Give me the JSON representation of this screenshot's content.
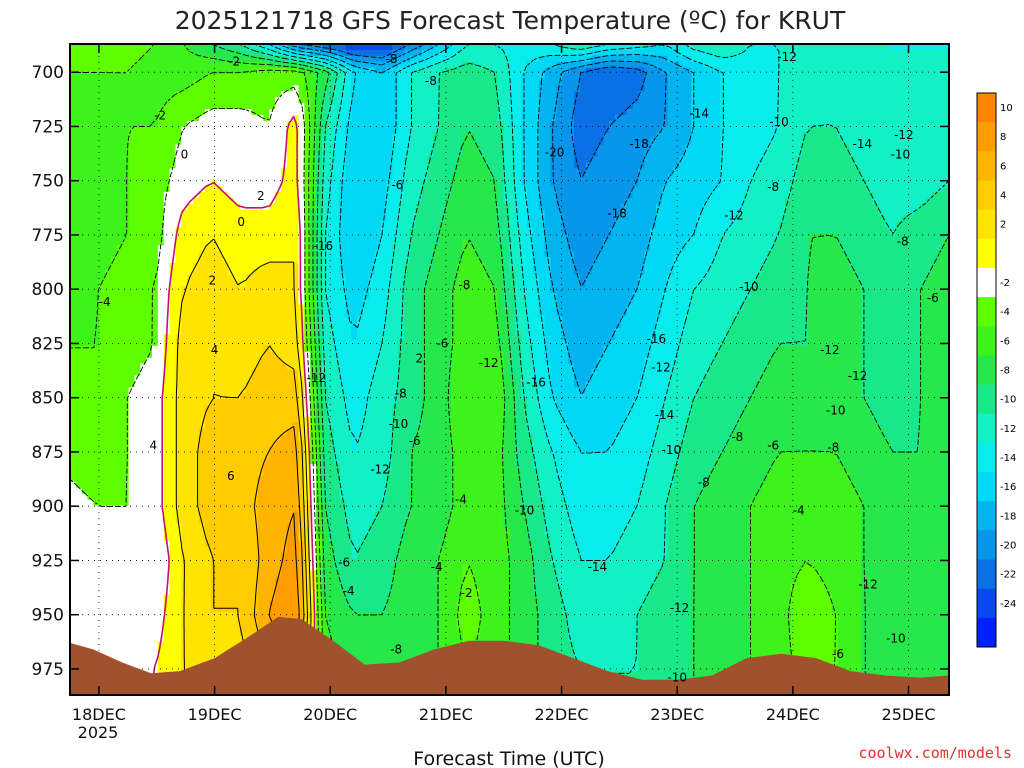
{
  "chart_data": {
    "type": "heatmap",
    "title": "2025121718 GFS Forecast Temperature (ºC) for KRUT",
    "xlabel": "Forecast Time (UTC)",
    "ylabel": "",
    "x_ticks": [
      "18DEC",
      "19DEC",
      "20DEC",
      "21DEC",
      "22DEC",
      "23DEC",
      "24DEC",
      "25DEC"
    ],
    "x_year": "2025",
    "y_ticks": [
      "700",
      "725",
      "750",
      "775",
      "800",
      "825",
      "850",
      "875",
      "900",
      "925",
      "950",
      "975"
    ],
    "ylim": [
      987,
      687
    ],
    "xlim": [
      -0.25,
      7.35
    ],
    "colorbar": {
      "labels": [
        "10",
        "8",
        "6",
        "4",
        "2",
        "-2",
        "-4",
        "-6",
        "-8",
        "-10",
        "-12",
        "-14",
        "-16",
        "-18",
        "-20",
        "-22",
        "-24"
      ],
      "bins": [
        {
          "lo": 10,
          "hi": 12,
          "color": "#ff8400"
        },
        {
          "lo": 8,
          "hi": 10,
          "color": "#ff9c00"
        },
        {
          "lo": 6,
          "hi": 8,
          "color": "#ffb400"
        },
        {
          "lo": 4,
          "hi": 6,
          "color": "#ffcc00"
        },
        {
          "lo": 2,
          "hi": 4,
          "color": "#ffe400"
        },
        {
          "lo": 0,
          "hi": 2,
          "color": "#ffff00"
        },
        {
          "lo": -2,
          "hi": 0,
          "color": "#ffffff"
        },
        {
          "lo": -4,
          "hi": -2,
          "color": "#5eff00"
        },
        {
          "lo": -6,
          "hi": -4,
          "color": "#3ef21b"
        },
        {
          "lo": -8,
          "hi": -6,
          "color": "#27e84a"
        },
        {
          "lo": -10,
          "hi": -8,
          "color": "#19e88a"
        },
        {
          "lo": -12,
          "hi": -10,
          "color": "#12f0c6"
        },
        {
          "lo": -14,
          "hi": -12,
          "color": "#08ecec"
        },
        {
          "lo": -16,
          "hi": -14,
          "color": "#00d8f4"
        },
        {
          "lo": -18,
          "hi": -16,
          "color": "#00b4f0"
        },
        {
          "lo": -20,
          "hi": -18,
          "color": "#0896ea"
        },
        {
          "lo": -22,
          "hi": -20,
          "color": "#0a70e6"
        },
        {
          "lo": -24,
          "hi": -22,
          "color": "#0a48f0"
        },
        {
          "lo": -26,
          "hi": -24,
          "color": "#0020ff"
        }
      ]
    },
    "terrain_color": "#a0522d",
    "terrain": {
      "x": [
        -0.25,
        -0.05,
        0.2,
        0.45,
        0.7,
        1.0,
        1.3,
        1.55,
        1.75,
        2.0,
        2.3,
        2.6,
        2.9,
        3.2,
        3.5,
        3.8,
        4.1,
        4.4,
        4.7,
        5.0,
        5.3,
        5.6,
        5.9,
        6.2,
        6.5,
        6.8,
        7.1,
        7.35
      ],
      "y": [
        963,
        966,
        972,
        977,
        976,
        970,
        960,
        951,
        952,
        961,
        973,
        972,
        966,
        962,
        962,
        964,
        970,
        976,
        980,
        980,
        978,
        970,
        968,
        970,
        976,
        978,
        979,
        978
      ]
    },
    "grid": [
      {
        "p": 687,
        "t": [
          -2,
          -3,
          -3,
          -4,
          -6,
          -8,
          -10,
          -14,
          -20,
          -22,
          -24,
          -24,
          -20,
          -16,
          -12,
          -12,
          -13,
          -12,
          -10,
          -12,
          -13,
          -14,
          -11,
          -10,
          -12,
          -12,
          -12,
          -12,
          -12,
          -12,
          -12,
          -12
        ]
      },
      {
        "p": 700,
        "t": [
          -4,
          -4,
          -4,
          -5,
          -5,
          -4,
          -4,
          -3,
          -3,
          -7,
          -14,
          -16,
          -12,
          -10,
          -9,
          -10,
          -14,
          -17,
          -20,
          -22,
          -21,
          -18,
          -16,
          -14,
          -13,
          -12,
          -11,
          -10,
          -11,
          -12,
          -12,
          -12
        ]
      },
      {
        "p": 725,
        "t": [
          -6,
          -5,
          -4,
          -4,
          -2,
          -1,
          -1,
          -2,
          1,
          -10,
          -15,
          -16,
          -12,
          -10,
          -8,
          -9,
          -14,
          -18,
          -21,
          -20,
          -19,
          -18,
          -16,
          -14,
          -13,
          -12,
          -10,
          -10,
          -11,
          -12,
          -12,
          -12
        ]
      },
      {
        "p": 750,
        "t": [
          -6,
          -5,
          -4,
          -3,
          -1,
          0,
          -1,
          -1,
          1,
          -11,
          -16,
          -15,
          -11,
          -9,
          -7,
          -8,
          -14,
          -18,
          -20,
          -19,
          -18,
          -16,
          -15,
          -14,
          -12,
          -11,
          -9,
          -9,
          -10,
          -11,
          -11,
          -10
        ]
      },
      {
        "p": 775,
        "t": [
          -6,
          -5,
          -4,
          -3,
          1,
          2,
          1,
          1,
          2,
          -12,
          -16,
          -14,
          -10,
          -8,
          -6,
          -7,
          -13,
          -17,
          -19,
          -18,
          -17,
          -15,
          -14,
          -12,
          -11,
          -10,
          -8,
          -8,
          -9,
          -10,
          -9,
          -8
        ]
      },
      {
        "p": 800,
        "t": [
          -5,
          -4,
          -3,
          -2,
          2,
          3,
          2,
          3,
          2,
          -12,
          -15,
          -13,
          -9,
          -7,
          -5,
          -6,
          -12,
          -16,
          -18,
          -17,
          -16,
          -14,
          -12,
          -11,
          -10,
          -9,
          -8,
          -7,
          -8,
          -9,
          -8,
          -7
        ]
      },
      {
        "p": 825,
        "t": [
          -4,
          -4,
          -3,
          -2,
          3,
          4,
          3,
          4,
          3,
          -11,
          -14,
          -12,
          -9,
          -7,
          -5,
          -5,
          -11,
          -15,
          -17,
          -16,
          -15,
          -13,
          -11,
          -10,
          -9,
          -8,
          -8,
          -7,
          -8,
          -9,
          -8,
          -7
        ]
      },
      {
        "p": 850,
        "t": [
          -4,
          -4,
          -2,
          -1,
          3,
          4,
          4,
          5,
          5,
          -10,
          -13,
          -11,
          -9,
          -7,
          -4,
          -4,
          -10,
          -14,
          -16,
          -15,
          -14,
          -12,
          -10,
          -9,
          -8,
          -7,
          -7,
          -7,
          -8,
          -9,
          -8,
          -7
        ]
      },
      {
        "p": 875,
        "t": [
          -3,
          -4,
          -2,
          -1,
          3,
          5,
          5,
          6,
          7,
          -9,
          -12,
          -11,
          -8,
          -7,
          -5,
          -5,
          -9,
          -12,
          -14,
          -14,
          -13,
          -11,
          -9,
          -8,
          -7,
          -6,
          -6,
          -6,
          -7,
          -8,
          -8,
          -7
        ]
      },
      {
        "p": 900,
        "t": [
          -1,
          -2,
          -2,
          -1,
          3,
          5,
          5,
          7,
          8,
          -8,
          -11,
          -10,
          -8,
          -7,
          -5,
          -5,
          -8,
          -11,
          -13,
          -13,
          -12,
          -10,
          -8,
          -7,
          -6,
          -5,
          -4,
          -5,
          -6,
          -7,
          -8,
          -8
        ]
      },
      {
        "p": 925,
        "t": [
          0,
          -1,
          -2,
          -2,
          2,
          4,
          4,
          7,
          9,
          -7,
          -10,
          -9,
          -7,
          -6,
          -4,
          -5,
          -7,
          -10,
          -12,
          -12,
          -11,
          -10,
          -8,
          -7,
          -6,
          -5,
          -4,
          -5,
          -6,
          -7,
          -8,
          -8
        ]
      },
      {
        "p": 950,
        "t": [
          -1,
          0,
          -2,
          -1,
          2,
          4,
          4,
          8,
          10,
          -6,
          -8,
          -8,
          -7,
          -6,
          -3,
          -5,
          -7,
          -9,
          -11,
          -11,
          -10,
          -9,
          -8,
          -7,
          -6,
          -5,
          -2,
          -4,
          -6,
          -7,
          -8,
          -8
        ]
      },
      {
        "p": 975,
        "t": [
          -1,
          0,
          -1,
          0,
          2,
          3,
          3,
          6,
          8,
          -5,
          -7,
          -7,
          -7,
          -6,
          -4,
          -5,
          -7,
          -9,
          -10,
          -10,
          -10,
          -9,
          -8,
          -7,
          -6,
          -5,
          -3,
          -4,
          -6,
          -7,
          -8,
          -8
        ]
      },
      {
        "p": 987,
        "t": [
          -1,
          0,
          -1,
          0,
          2,
          3,
          3,
          6,
          8,
          -5,
          -7,
          -7,
          -7,
          -6,
          -4,
          -5,
          -7,
          -9,
          -10,
          -10,
          -10,
          -9,
          -8,
          -7,
          -6,
          -5,
          -3,
          -4,
          -6,
          -7,
          -8,
          -8
        ]
      }
    ],
    "contour_labels": [
      {
        "x": 1.17,
        "p": 695,
        "text": "-2"
      },
      {
        "x": 0.53,
        "p": 720,
        "text": "-2"
      },
      {
        "x": 0.74,
        "p": 738,
        "text": "0"
      },
      {
        "x": 1.23,
        "p": 769,
        "text": "0"
      },
      {
        "x": 1.4,
        "p": 757,
        "text": "2"
      },
      {
        "x": 0.98,
        "p": 796,
        "text": "2"
      },
      {
        "x": 1.0,
        "p": 828,
        "text": "4"
      },
      {
        "x": 0.47,
        "p": 872,
        "text": "4"
      },
      {
        "x": 1.14,
        "p": 886,
        "text": "6"
      },
      {
        "x": 0.05,
        "p": 806,
        "text": "-4"
      },
      {
        "x": 2.53,
        "p": 694,
        "text": "-8"
      },
      {
        "x": 2.87,
        "p": 704,
        "text": "-8"
      },
      {
        "x": 2.58,
        "p": 752,
        "text": "-6"
      },
      {
        "x": 1.94,
        "p": 780,
        "text": "-16"
      },
      {
        "x": 3.16,
        "p": 798,
        "text": "-8"
      },
      {
        "x": 2.61,
        "p": 848,
        "text": "-8"
      },
      {
        "x": 2.59,
        "p": 862,
        "text": "-10"
      },
      {
        "x": 2.97,
        "p": 825,
        "text": "-6"
      },
      {
        "x": 2.77,
        "p": 832,
        "text": "2"
      },
      {
        "x": 3.37,
        "p": 834,
        "text": "-12"
      },
      {
        "x": 1.88,
        "p": 841,
        "text": "-12"
      },
      {
        "x": 2.73,
        "p": 870,
        "text": "-6"
      },
      {
        "x": 2.43,
        "p": 883,
        "text": "-12"
      },
      {
        "x": 3.13,
        "p": 897,
        "text": "-4"
      },
      {
        "x": 3.78,
        "p": 843,
        "text": "-16"
      },
      {
        "x": 3.94,
        "p": 737,
        "text": "-20"
      },
      {
        "x": 4.67,
        "p": 733,
        "text": "-18"
      },
      {
        "x": 4.48,
        "p": 765,
        "text": "-18"
      },
      {
        "x": 4.82,
        "p": 823,
        "text": "-16"
      },
      {
        "x": 4.86,
        "p": 836,
        "text": "-12"
      },
      {
        "x": 4.89,
        "p": 858,
        "text": "-14"
      },
      {
        "x": 3.68,
        "p": 902,
        "text": "-10"
      },
      {
        "x": 4.31,
        "p": 928,
        "text": "-14"
      },
      {
        "x": 4.95,
        "p": 874,
        "text": "-10"
      },
      {
        "x": 5.23,
        "p": 889,
        "text": "-8"
      },
      {
        "x": 5.02,
        "p": 947,
        "text": "-12"
      },
      {
        "x": 3.18,
        "p": 940,
        "text": "-2"
      },
      {
        "x": 2.92,
        "p": 928,
        "text": "-4"
      },
      {
        "x": 2.12,
        "p": 926,
        "text": "-6"
      },
      {
        "x": 2.16,
        "p": 939,
        "text": "-4"
      },
      {
        "x": 2.57,
        "p": 966,
        "text": "-8"
      },
      {
        "x": 5.0,
        "p": 979,
        "text": "-10"
      },
      {
        "x": 5.19,
        "p": 719,
        "text": "-14"
      },
      {
        "x": 5.95,
        "p": 693,
        "text": "-12"
      },
      {
        "x": 5.88,
        "p": 723,
        "text": "-10"
      },
      {
        "x": 5.83,
        "p": 753,
        "text": "-8"
      },
      {
        "x": 5.49,
        "p": 766,
        "text": "-12"
      },
      {
        "x": 5.62,
        "p": 799,
        "text": "-10"
      },
      {
        "x": 6.6,
        "p": 733,
        "text": "-14"
      },
      {
        "x": 6.96,
        "p": 729,
        "text": "-12"
      },
      {
        "x": 6.93,
        "p": 738,
        "text": "-10"
      },
      {
        "x": 6.95,
        "p": 778,
        "text": "-8"
      },
      {
        "x": 7.21,
        "p": 804,
        "text": "-6"
      },
      {
        "x": 6.32,
        "p": 828,
        "text": "-12"
      },
      {
        "x": 6.56,
        "p": 840,
        "text": "-12"
      },
      {
        "x": 6.37,
        "p": 856,
        "text": "-10"
      },
      {
        "x": 5.83,
        "p": 872,
        "text": "-6"
      },
      {
        "x": 5.52,
        "p": 868,
        "text": "-8"
      },
      {
        "x": 6.35,
        "p": 873,
        "text": "-8"
      },
      {
        "x": 6.05,
        "p": 902,
        "text": "-4"
      },
      {
        "x": 6.65,
        "p": 936,
        "text": "-12"
      },
      {
        "x": 6.89,
        "p": 961,
        "text": "-10"
      },
      {
        "x": 6.39,
        "p": 968,
        "text": "-6"
      }
    ],
    "contour_levels": [
      -20,
      -18,
      -16,
      -14,
      -12,
      -10,
      -8,
      -6,
      -4,
      -2,
      0,
      2,
      4,
      6,
      8
    ]
  },
  "credit": "coolwx.com/models",
  "credit_color": "#e33030"
}
